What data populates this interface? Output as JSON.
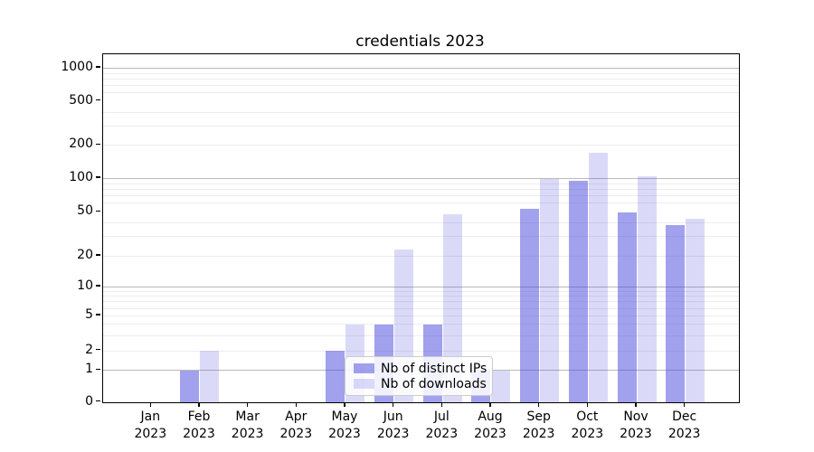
{
  "title": "credentials 2023",
  "chart_data": {
    "type": "bar",
    "title": "credentials 2023",
    "categories": [
      "Jan 2023",
      "Feb 2023",
      "Mar 2023",
      "Apr 2023",
      "May 2023",
      "Jun 2023",
      "Jul 2023",
      "Aug 2023",
      "Sep 2023",
      "Oct 2023",
      "Nov 2023",
      "Dec 2023"
    ],
    "series": [
      {
        "name": "Nb of distinct IPs",
        "color": "rgba(68,68,221,0.5)",
        "values": [
          0,
          1,
          0,
          0,
          2,
          4,
          4,
          1,
          54,
          95,
          50,
          38
        ]
      },
      {
        "name": "Nb of downloads",
        "color": "rgba(68,68,221,0.2)",
        "values": [
          0,
          2,
          0,
          0,
          4,
          23,
          48,
          1,
          100,
          170,
          105,
          44
        ]
      }
    ],
    "yscale": "symlog",
    "yticks": [
      0,
      1,
      2,
      5,
      10,
      20,
      50,
      100,
      200,
      500,
      1000
    ],
    "grid_major": [
      1,
      10,
      100,
      1000
    ],
    "grid_minor": [
      2,
      3,
      4,
      5,
      6,
      7,
      8,
      9,
      20,
      30,
      40,
      60,
      70,
      80,
      90,
      200,
      300,
      400,
      600,
      700,
      800,
      900
    ],
    "legend_position": "lower center",
    "xlabel": "",
    "ylabel": ""
  },
  "colors": {
    "bar_ips": "rgba(68,68,221,0.5)",
    "bar_downloads": "rgba(68,68,221,0.2)",
    "grid_major": "#b9b9b9",
    "grid_minor": "#ededed",
    "spine": "#000000"
  }
}
